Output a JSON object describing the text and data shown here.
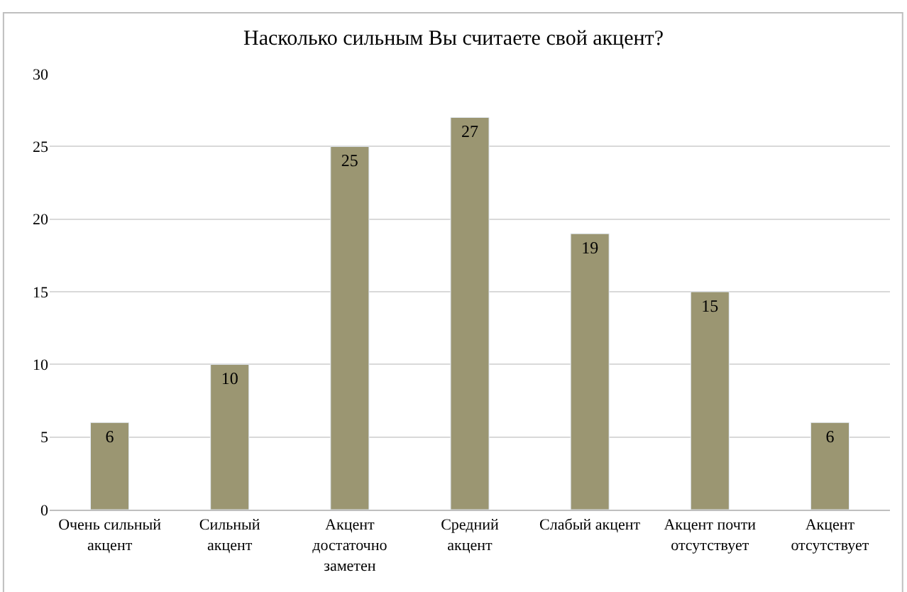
{
  "chart_data": {
    "type": "bar",
    "title": "Насколько сильным Вы считаете свой акцент?",
    "categories": [
      "Очень сильный акцент",
      "Сильный акцент",
      "Акцент достаточно заметен",
      "Средний акцент",
      "Слабый акцент",
      "Акцент почти отсутствует",
      "Акцент отсутствует"
    ],
    "values": [
      6,
      10,
      25,
      27,
      19,
      15,
      6
    ],
    "color": "#9b9672",
    "ylim": [
      0,
      30
    ],
    "yticks": [
      0,
      5,
      10,
      15,
      20,
      25,
      30
    ],
    "grid": "y",
    "data_labels": true
  }
}
